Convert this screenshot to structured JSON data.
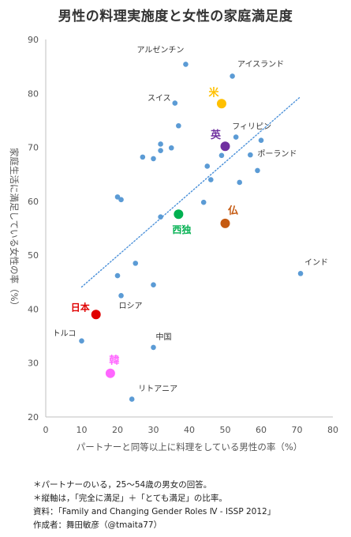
{
  "title": "男性の料理実施度と女性の家庭満足度",
  "chart_data": {
    "type": "scatter",
    "xlabel": "パートナーと同等以上に料理をしている男性の率（%）",
    "ylabel": "家庭生活に満足している女性の率（%）",
    "xlim": [
      0,
      80
    ],
    "ylim": [
      20,
      90
    ],
    "xticks": [
      "0",
      "10",
      "20",
      "30",
      "40",
      "50",
      "60",
      "70",
      "80"
    ],
    "yticks": [
      "20",
      "30",
      "40",
      "50",
      "60",
      "70",
      "80",
      "90"
    ],
    "grid": false,
    "trendline": {
      "style": "dotted",
      "color": "#4a90d9",
      "points": [
        [
          10,
          44.1
        ],
        [
          71,
          79.4
        ]
      ]
    },
    "points": [
      {
        "x": 39,
        "y": 85.4,
        "label": "アルゼンチン",
        "color": "#5b9bd5",
        "size": "small"
      },
      {
        "x": 52,
        "y": 83.2,
        "label": "アイスランド",
        "color": "#5b9bd5",
        "size": "small"
      },
      {
        "x": 49,
        "y": 78.1,
        "label": "米",
        "color": "#ffc000",
        "size": "large"
      },
      {
        "x": 36,
        "y": 78.2,
        "label": "スイス",
        "color": "#5b9bd5",
        "size": "small"
      },
      {
        "x": 37,
        "y": 74.0,
        "label": "",
        "color": "#5b9bd5",
        "size": "small"
      },
      {
        "x": 53,
        "y": 71.9,
        "label": "フィリピン",
        "color": "#5b9bd5",
        "size": "small"
      },
      {
        "x": 50,
        "y": 70.2,
        "label": "英",
        "color": "#7030a0",
        "size": "large"
      },
      {
        "x": 60,
        "y": 71.3,
        "label": "",
        "color": "#5b9bd5",
        "size": "small"
      },
      {
        "x": 57,
        "y": 68.6,
        "label": "ポーランド",
        "color": "#5b9bd5",
        "size": "small"
      },
      {
        "x": 32,
        "y": 70.6,
        "label": "",
        "color": "#5b9bd5",
        "size": "small"
      },
      {
        "x": 35,
        "y": 69.9,
        "label": "",
        "color": "#5b9bd5",
        "size": "small"
      },
      {
        "x": 32,
        "y": 69.4,
        "label": "",
        "color": "#5b9bd5",
        "size": "small"
      },
      {
        "x": 27,
        "y": 68.2,
        "label": "",
        "color": "#5b9bd5",
        "size": "small"
      },
      {
        "x": 30,
        "y": 67.9,
        "label": "",
        "color": "#5b9bd5",
        "size": "small"
      },
      {
        "x": 49,
        "y": 68.5,
        "label": "",
        "color": "#5b9bd5",
        "size": "small"
      },
      {
        "x": 45,
        "y": 66.5,
        "label": "",
        "color": "#5b9bd5",
        "size": "small"
      },
      {
        "x": 59,
        "y": 65.7,
        "label": "",
        "color": "#5b9bd5",
        "size": "small"
      },
      {
        "x": 46,
        "y": 64.0,
        "label": "",
        "color": "#5b9bd5",
        "size": "small"
      },
      {
        "x": 54,
        "y": 63.5,
        "label": "",
        "color": "#5b9bd5",
        "size": "small"
      },
      {
        "x": 20,
        "y": 60.8,
        "label": "",
        "color": "#5b9bd5",
        "size": "small"
      },
      {
        "x": 21,
        "y": 60.3,
        "label": "",
        "color": "#5b9bd5",
        "size": "small"
      },
      {
        "x": 44,
        "y": 59.8,
        "label": "",
        "color": "#5b9bd5",
        "size": "small"
      },
      {
        "x": 37,
        "y": 57.6,
        "label": "西独",
        "color": "#00b050",
        "size": "large"
      },
      {
        "x": 32,
        "y": 57.1,
        "label": "",
        "color": "#5b9bd5",
        "size": "small"
      },
      {
        "x": 50,
        "y": 55.9,
        "label": "仏",
        "color": "#c55a11",
        "size": "large"
      },
      {
        "x": 25,
        "y": 48.5,
        "label": "",
        "color": "#5b9bd5",
        "size": "small"
      },
      {
        "x": 71,
        "y": 46.6,
        "label": "インド",
        "color": "#5b9bd5",
        "size": "small"
      },
      {
        "x": 20,
        "y": 46.2,
        "label": "",
        "color": "#5b9bd5",
        "size": "small"
      },
      {
        "x": 30,
        "y": 44.5,
        "label": "",
        "color": "#5b9bd5",
        "size": "small"
      },
      {
        "x": 21,
        "y": 42.5,
        "label": "ロシア",
        "color": "#5b9bd5",
        "size": "small"
      },
      {
        "x": 14,
        "y": 39.0,
        "label": "日本",
        "color": "#e00000",
        "size": "large"
      },
      {
        "x": 10,
        "y": 34.1,
        "label": "トルコ",
        "color": "#5b9bd5",
        "size": "small"
      },
      {
        "x": 30,
        "y": 32.9,
        "label": "中国",
        "color": "#5b9bd5",
        "size": "small"
      },
      {
        "x": 18,
        "y": 28.1,
        "label": "韓",
        "color": "#ff66ff",
        "size": "large"
      },
      {
        "x": 24,
        "y": 23.3,
        "label": "リトアニア",
        "color": "#5b9bd5",
        "size": "small"
      }
    ]
  },
  "notes": [
    "＊パートナーのいる，25～54歳の男女の回答。",
    "＊縦軸は，「完全に満足」＋「とても満足」の比率。",
    "資料：「Family and Changing Gender Roles Ⅳ - ISSP 2012」",
    "作成者：舞田敏彦（@tmaita77）"
  ]
}
